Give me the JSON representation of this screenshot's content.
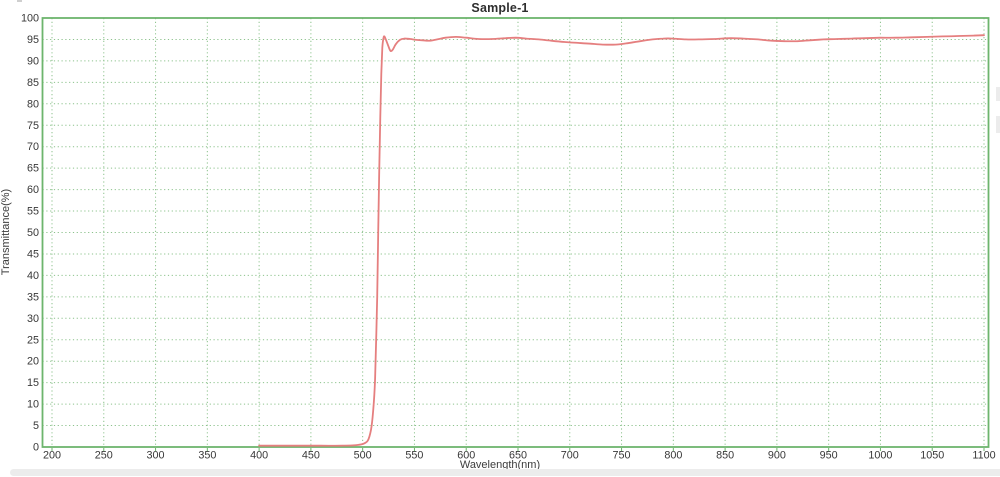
{
  "chart_data": {
    "type": "line",
    "title": "Sample-1",
    "xlabel": "Wavelength(nm)",
    "ylabel": "Transmittance(%)",
    "xlim": [
      200,
      1100
    ],
    "ylim": [
      0,
      100
    ],
    "xtick_step": 50,
    "ytick_step": 5,
    "grid": "dotted",
    "legend": "none",
    "colors": {
      "border": "#6db56d",
      "grid": "#8cc28c",
      "curve": "#e57f7f",
      "tick_text": "#383838",
      "title_text": "#2e2e2e",
      "background": "#ffffff",
      "scrollbar": "#ececec"
    },
    "series": [
      {
        "name": "Sample-1",
        "color": "#e57f7f",
        "points": [
          [
            400,
            0.3
          ],
          [
            420,
            0.3
          ],
          [
            440,
            0.3
          ],
          [
            460,
            0.3
          ],
          [
            480,
            0.3
          ],
          [
            492,
            0.4
          ],
          [
            500,
            0.7
          ],
          [
            505,
            1.5
          ],
          [
            508,
            4
          ],
          [
            510,
            8
          ],
          [
            512,
            16
          ],
          [
            514,
            35
          ],
          [
            515,
            50
          ],
          [
            516,
            64
          ],
          [
            517,
            77
          ],
          [
            518,
            87
          ],
          [
            519,
            93
          ],
          [
            520,
            95.2
          ],
          [
            521,
            95.7
          ],
          [
            523,
            94.6
          ],
          [
            525,
            93.3
          ],
          [
            527,
            92.3
          ],
          [
            529,
            92.6
          ],
          [
            532,
            93.9
          ],
          [
            536,
            94.9
          ],
          [
            540,
            95.2
          ],
          [
            546,
            95.1
          ],
          [
            552,
            94.9
          ],
          [
            558,
            94.8
          ],
          [
            565,
            94.7
          ],
          [
            572,
            95.0
          ],
          [
            580,
            95.4
          ],
          [
            590,
            95.6
          ],
          [
            600,
            95.4
          ],
          [
            612,
            95.1
          ],
          [
            625,
            95.1
          ],
          [
            638,
            95.3
          ],
          [
            648,
            95.4
          ],
          [
            658,
            95.2
          ],
          [
            670,
            95.0
          ],
          [
            682,
            94.7
          ],
          [
            695,
            94.4
          ],
          [
            708,
            94.2
          ],
          [
            720,
            94.0
          ],
          [
            732,
            93.8
          ],
          [
            744,
            93.8
          ],
          [
            755,
            94.1
          ],
          [
            768,
            94.6
          ],
          [
            780,
            95.0
          ],
          [
            790,
            95.2
          ],
          [
            800,
            95.2
          ],
          [
            812,
            95.0
          ],
          [
            825,
            95.0
          ],
          [
            840,
            95.1
          ],
          [
            855,
            95.3
          ],
          [
            868,
            95.2
          ],
          [
            882,
            95.0
          ],
          [
            895,
            94.7
          ],
          [
            908,
            94.6
          ],
          [
            920,
            94.6
          ],
          [
            932,
            94.8
          ],
          [
            945,
            95.0
          ],
          [
            958,
            95.1
          ],
          [
            972,
            95.2
          ],
          [
            985,
            95.3
          ],
          [
            1000,
            95.4
          ],
          [
            1015,
            95.4
          ],
          [
            1030,
            95.5
          ],
          [
            1045,
            95.6
          ],
          [
            1060,
            95.7
          ],
          [
            1075,
            95.8
          ],
          [
            1090,
            95.9
          ],
          [
            1100,
            96.0
          ]
        ]
      }
    ]
  }
}
